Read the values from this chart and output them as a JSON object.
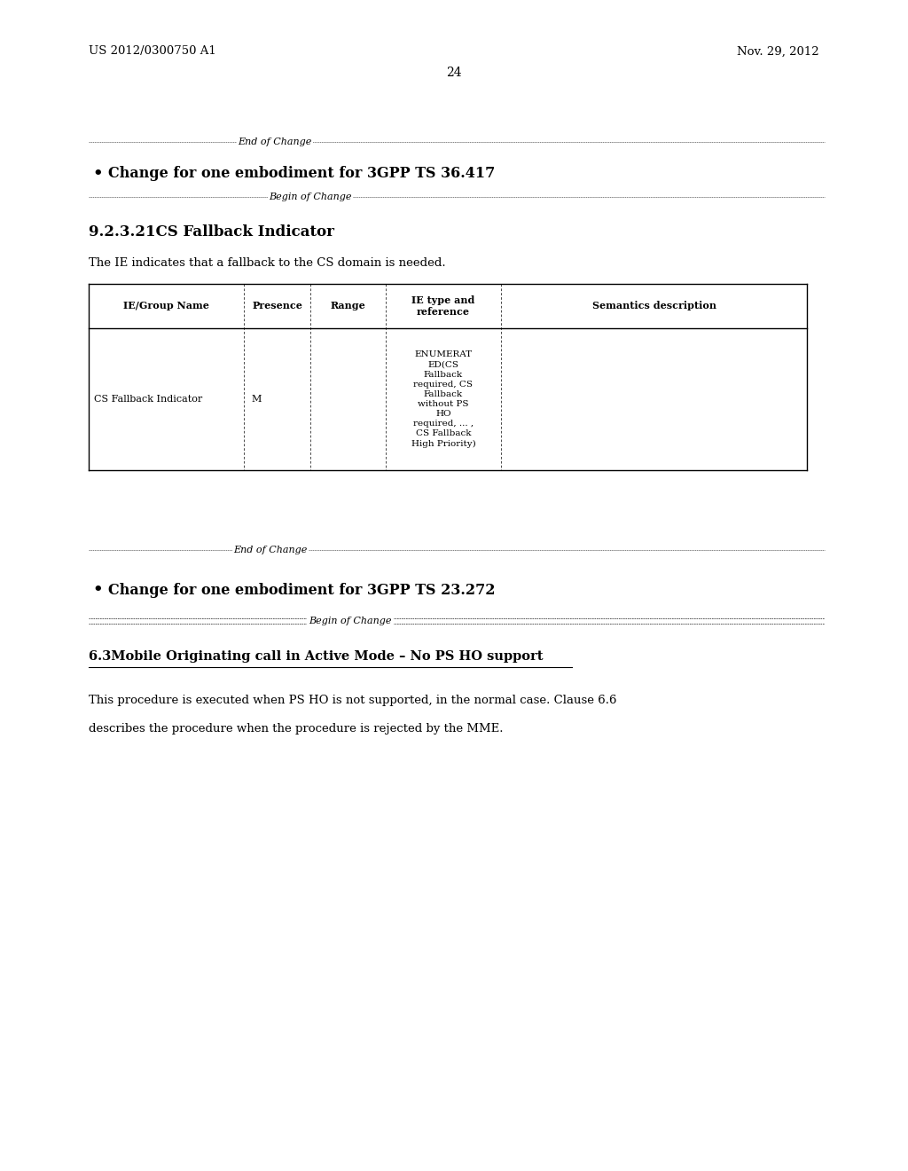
{
  "bg_color": "#ffffff",
  "header_left": "US 2012/0300750 A1",
  "header_right": "Nov. 29, 2012",
  "page_number": "24",
  "end_of_change_1": "End of Change",
  "bullet1_text": "Change for one embodiment for 3GPP TS 36.417",
  "begin_of_change_1": "Begin of Change",
  "section_title": "9.2.3.21CS Fallback Indicator",
  "section_desc": "The IE indicates that a fallback to the CS domain is needed.",
  "table_headers": [
    "IE/Group Name",
    "Presence",
    "Range",
    "IE type and\nreference",
    "Semantics description"
  ],
  "table_row": [
    "CS Fallback Indicator",
    "M",
    "",
    "ENUMERAT\nED(CS\nFallback\nrequired, CS\nFallback\nwithout PS\nHO\nrequired, ... ,\nCS Fallback\nHigh Priority)",
    ""
  ],
  "end_of_change_2": "End of Change",
  "bullet2_text": "Change for one embodiment for 3GPP TS 23.272",
  "begin_of_change_2": "Begin of Change",
  "subsection_title": "6.3Mobile Originating call in Active Mode – No PS HO support",
  "subsection_desc1": "This procedure is executed when PS HO is not supported, in the normal case. Clause 6.6",
  "subsection_desc2": "describes the procedure when the procedure is rejected by the MME."
}
